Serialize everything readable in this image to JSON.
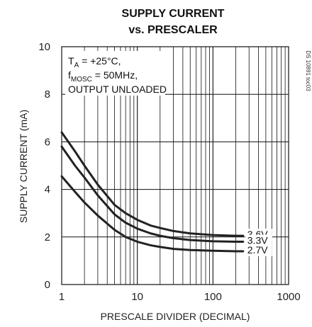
{
  "chart_data": {
    "type": "line",
    "title_line1": "SUPPLY CURRENT",
    "title_line2": "vs. PRESCALER",
    "xlabel": "PRESCALE DIVIDER (DECIMAL)",
    "ylabel": "SUPPLY CURRENT (mA)",
    "x_scale": "log",
    "xlim": [
      1,
      1000
    ],
    "ylim": [
      0,
      10
    ],
    "x_ticks": [
      "1",
      "10",
      "100",
      "1000"
    ],
    "y_ticks": [
      "0",
      "2",
      "4",
      "6",
      "8",
      "10"
    ],
    "grid": true,
    "annotations": {
      "ta_main": "T",
      "ta_sub": "A",
      "ta_rest": " = +25°C,",
      "f_main": "f",
      "f_sub": "MOSC",
      "f_rest": " = 50MHz,",
      "line3": "OUTPUT UNLOADED"
    },
    "watermark": "DS 10891 toc03",
    "series": [
      {
        "name": "3.6V",
        "color": "#222222",
        "x": [
          1,
          1.5,
          2,
          3,
          5,
          7,
          10,
          15,
          20,
          30,
          50,
          100,
          200,
          250
        ],
        "y": [
          6.4,
          5.6,
          5.0,
          4.2,
          3.35,
          3.0,
          2.72,
          2.48,
          2.38,
          2.25,
          2.15,
          2.08,
          2.05,
          2.05
        ]
      },
      {
        "name": "3.3V",
        "color": "#222222",
        "x": [
          1,
          1.5,
          2,
          3,
          5,
          7,
          10,
          15,
          20,
          30,
          50,
          100,
          200,
          250
        ],
        "y": [
          5.8,
          5.0,
          4.5,
          3.75,
          2.95,
          2.6,
          2.35,
          2.15,
          2.05,
          1.95,
          1.87,
          1.82,
          1.8,
          1.8
        ]
      },
      {
        "name": "2.7V",
        "color": "#222222",
        "x": [
          1,
          1.5,
          2,
          3,
          5,
          7,
          10,
          15,
          20,
          30,
          50,
          100,
          200,
          250
        ],
        "y": [
          4.55,
          3.9,
          3.45,
          2.9,
          2.3,
          2.0,
          1.8,
          1.65,
          1.58,
          1.5,
          1.45,
          1.42,
          1.4,
          1.4
        ]
      }
    ]
  }
}
